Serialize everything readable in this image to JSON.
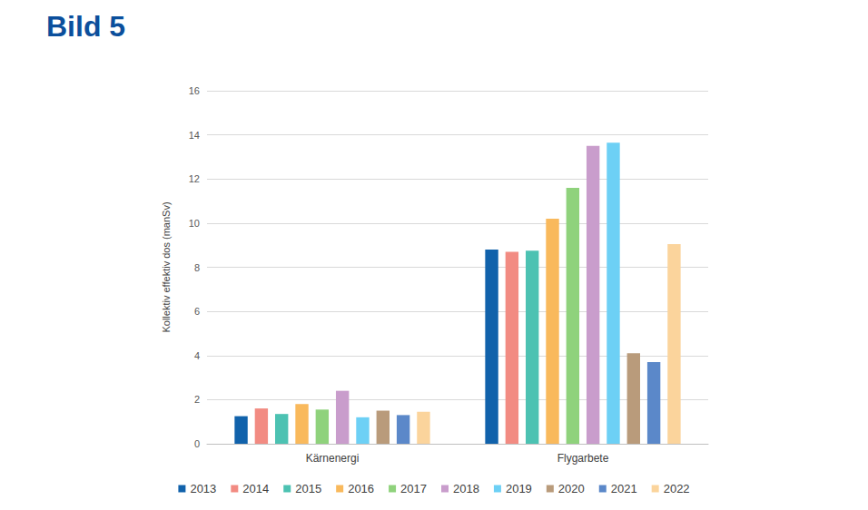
{
  "chart_data": {
    "type": "bar",
    "title": "Bild 5",
    "y_label": "Kollektiv effektiv dos (manSv)",
    "categories": [
      "Kärnenergi",
      "Flygarbete"
    ],
    "series": [
      {
        "name": "2013",
        "color": "#1162ab",
        "values": [
          1.25,
          8.8
        ]
      },
      {
        "name": "2014",
        "color": "#f28b82",
        "values": [
          1.6,
          8.7
        ]
      },
      {
        "name": "2015",
        "color": "#4cc2b2",
        "values": [
          1.35,
          8.75
        ]
      },
      {
        "name": "2016",
        "color": "#f9b95c",
        "values": [
          1.8,
          10.2
        ]
      },
      {
        "name": "2017",
        "color": "#8fd27c",
        "values": [
          1.55,
          11.6
        ]
      },
      {
        "name": "2018",
        "color": "#c99dcc",
        "values": [
          2.4,
          13.5
        ]
      },
      {
        "name": "2019",
        "color": "#6dd0f5",
        "values": [
          1.2,
          13.65
        ]
      },
      {
        "name": "2020",
        "color": "#b99b7b",
        "values": [
          1.5,
          4.1
        ]
      },
      {
        "name": "2021",
        "color": "#5b88c9",
        "values": [
          1.3,
          3.7
        ]
      },
      {
        "name": "2022",
        "color": "#fbd49c",
        "values": [
          1.45,
          9.05
        ]
      }
    ],
    "ylim": [
      0,
      16
    ],
    "yticks": [
      0,
      2,
      4,
      6,
      8,
      10,
      12,
      14,
      16
    ],
    "grid": true,
    "legend": "bottom"
  }
}
